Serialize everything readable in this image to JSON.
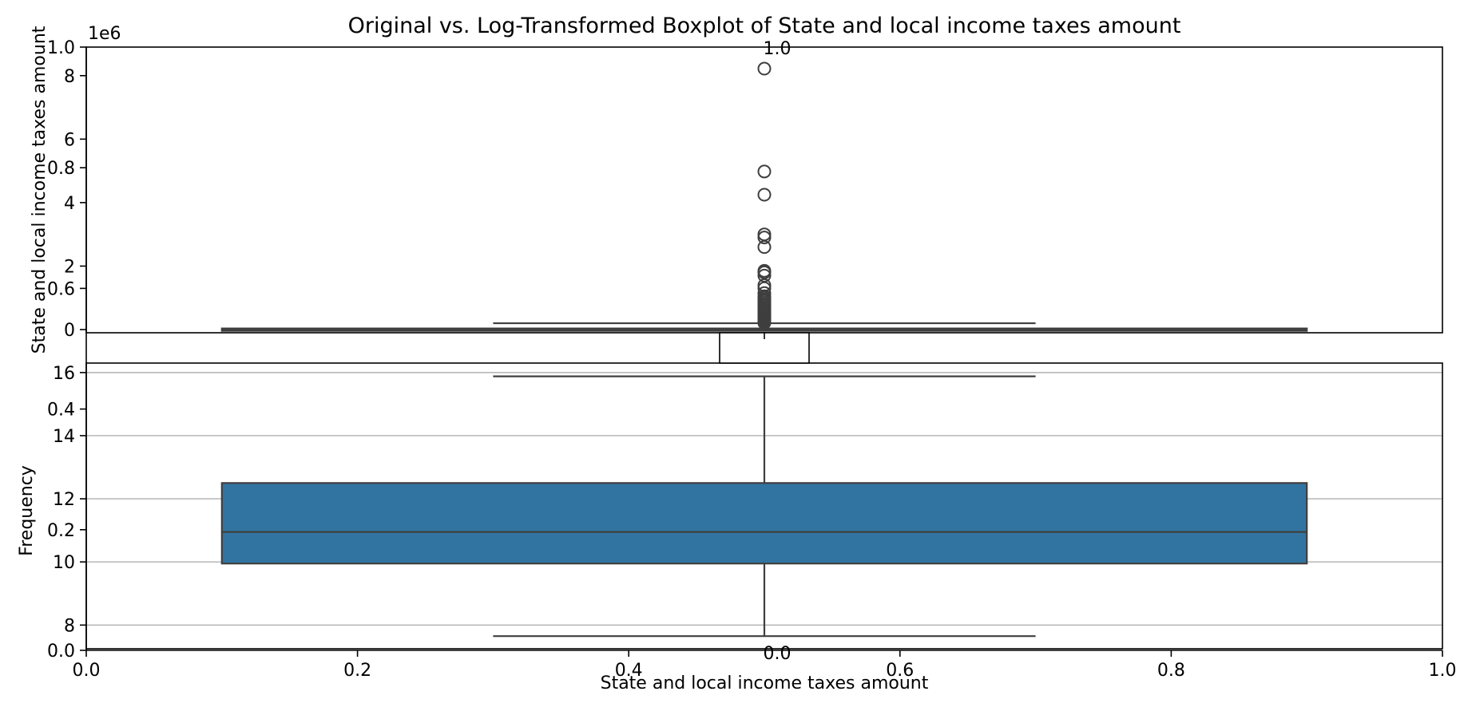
{
  "chart_data": {
    "title": "Original vs. Log-Transformed Boxplot of State and local income taxes amount",
    "background_axes": {
      "xlabel": "State and local income taxes amount",
      "ylabel": "Frequency",
      "xlim": [
        0.0,
        1.0
      ],
      "ylim": [
        0.0,
        1.0
      ],
      "xticks": [
        "0.0",
        "0.2",
        "0.4",
        "0.6",
        "0.8",
        "1.0"
      ],
      "yticks": [
        "0.0",
        "0.2",
        "0.4",
        "0.6",
        "0.8",
        "1.0"
      ]
    },
    "panels": [
      {
        "type": "boxplot",
        "name": "Original",
        "ylabel": "State and local income taxes amount",
        "y_offset_text": "1e6",
        "ylim": [
          -100000,
          8900000
        ],
        "yticks": [
          0,
          2,
          4,
          6,
          8
        ],
        "ytick_scale": 1000000,
        "grid": false,
        "box": {
          "q1": 5000,
          "median": 15000,
          "q3": 35000,
          "whisker_low": 0,
          "whisker_high": 200000
        },
        "outliers": [
          210000,
          240000,
          270000,
          300000,
          330000,
          360000,
          400000,
          440000,
          480000,
          520000,
          560000,
          600000,
          650000,
          700000,
          750000,
          800000,
          850000,
          900000,
          950000,
          1000000,
          1050000,
          1150000,
          1300000,
          1400000,
          1700000,
          1800000,
          1850000,
          2600000,
          2900000,
          3000000,
          4250000,
          4980000,
          8220000
        ],
        "color": "#3274a1"
      },
      {
        "type": "boxplot",
        "name": "Log-Transformed",
        "ylabel": "Frequency",
        "ylim": [
          7.25,
          16.3
        ],
        "yticks": [
          8,
          10,
          12,
          14,
          16
        ],
        "grid": true,
        "box": {
          "q1": 9.95,
          "median": 10.95,
          "q3": 12.5,
          "whisker_low": 7.65,
          "whisker_high": 15.88
        },
        "outliers": [],
        "color": "#3274a1"
      }
    ],
    "extra_axes": [
      {
        "position": "center",
        "xlim": [
          0.0,
          1.0
        ],
        "xticks": [
          "0.0"
        ],
        "top_label": "1.0"
      }
    ]
  }
}
